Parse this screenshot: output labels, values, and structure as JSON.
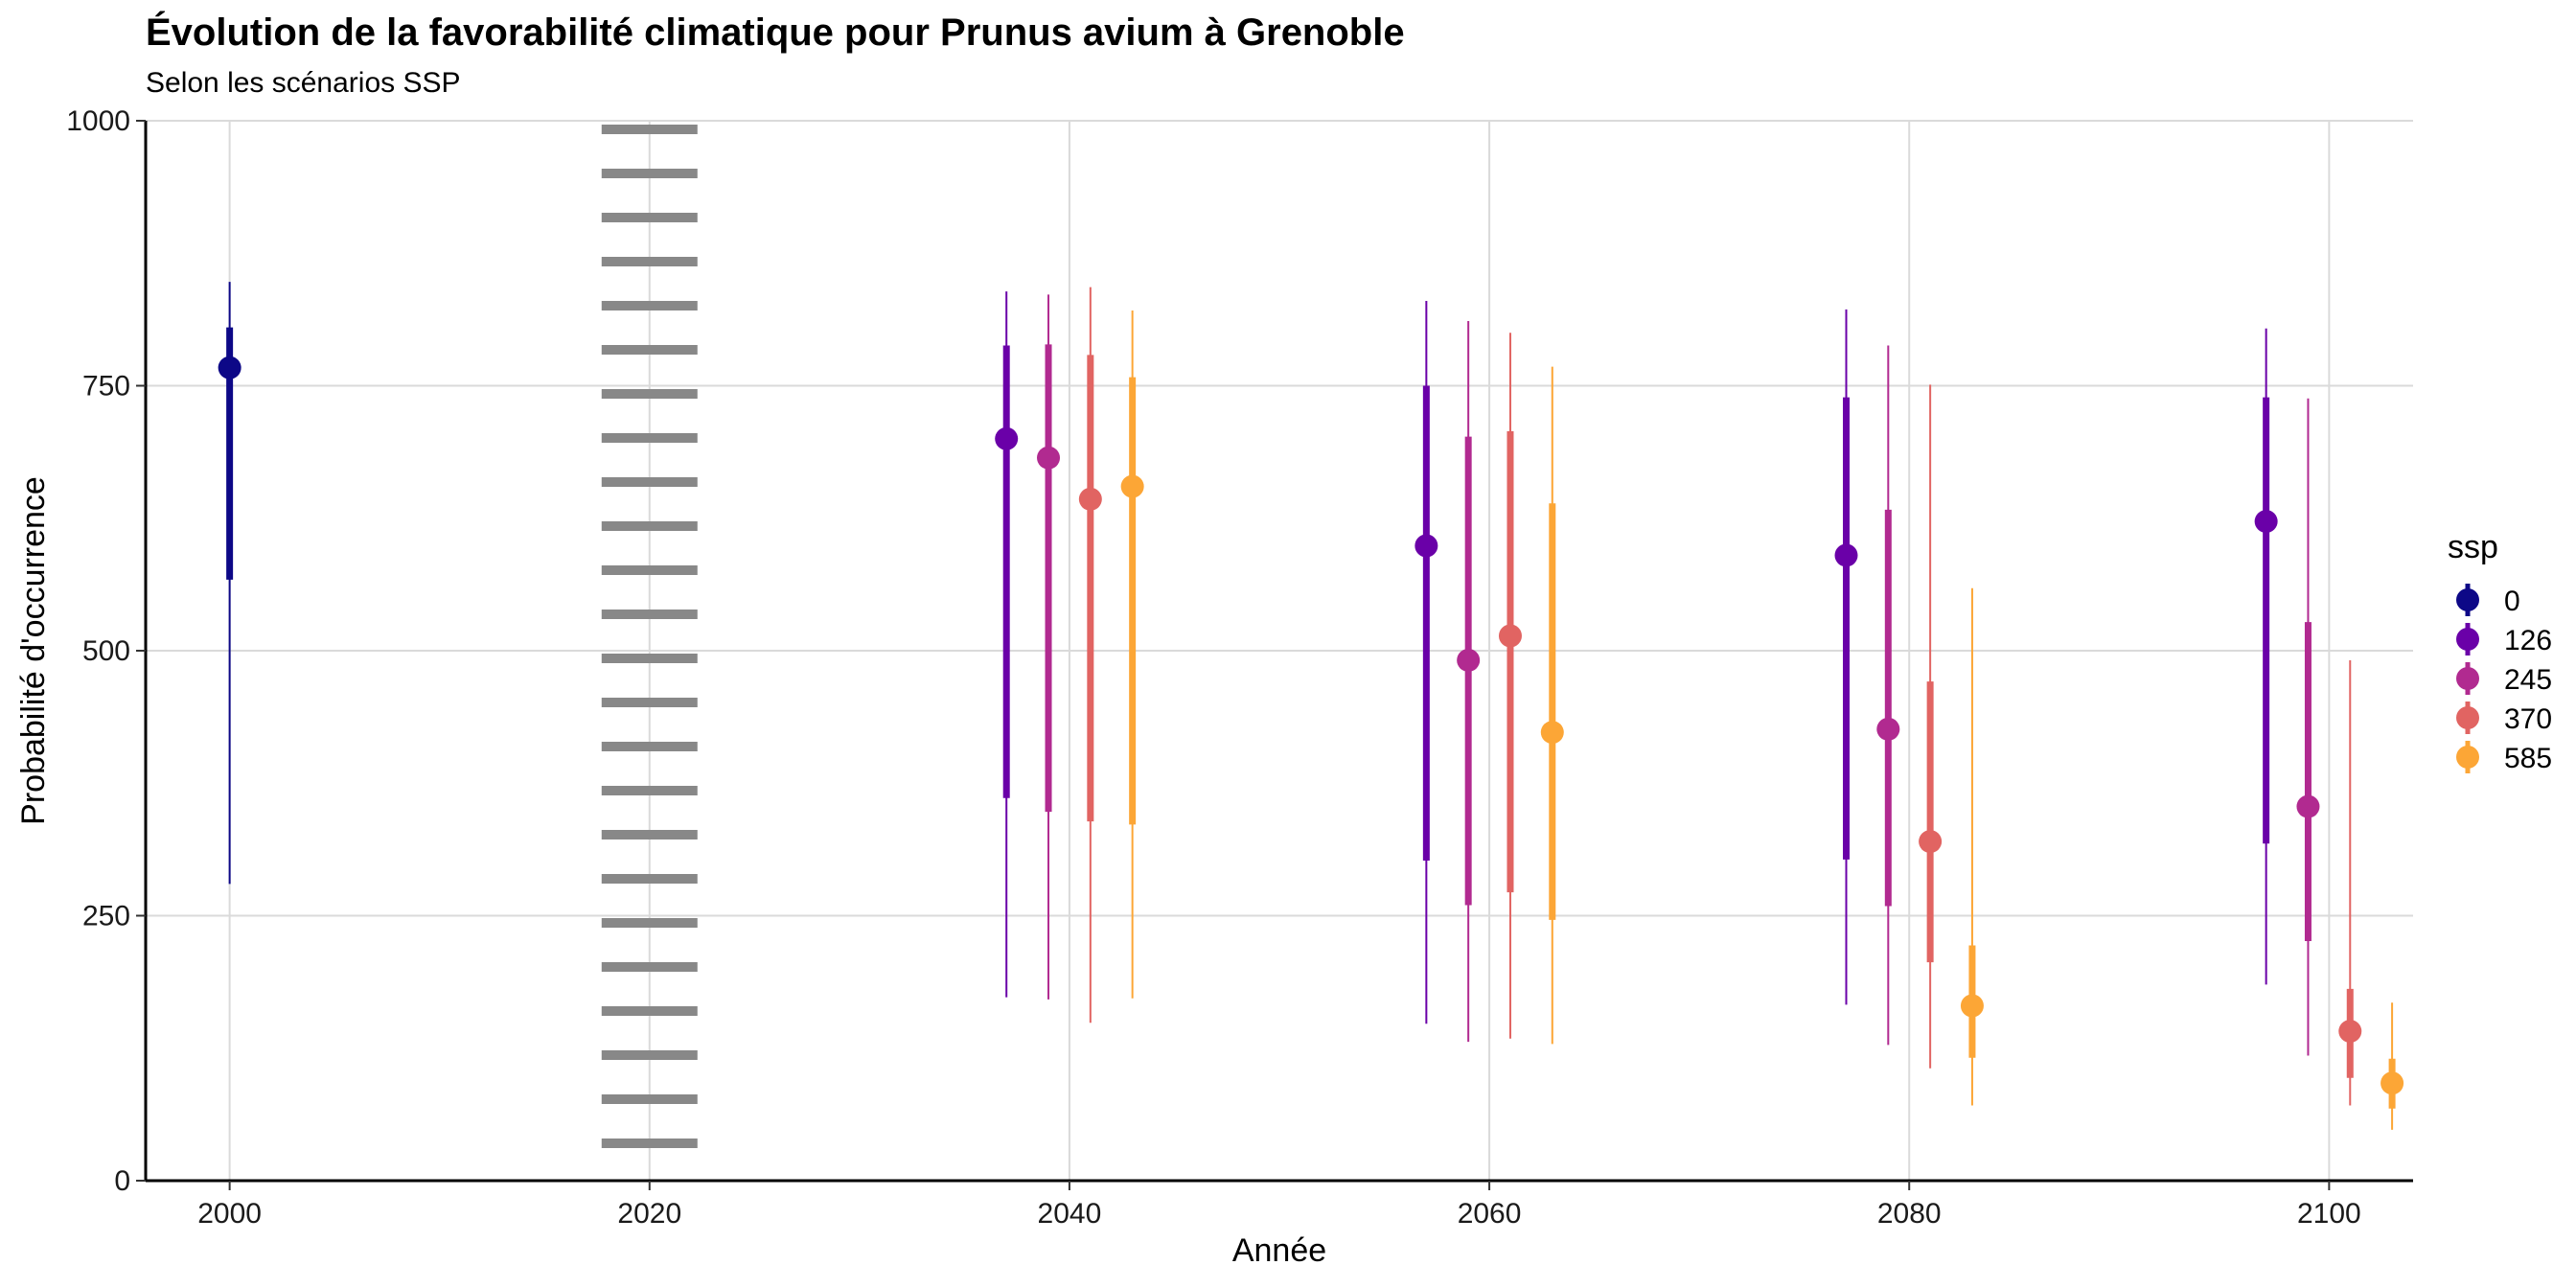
{
  "chart_data": {
    "type": "pointrange",
    "title": "Évolution de la favorabilité climatique pour Prunus avium à Grenoble",
    "subtitle": "Selon les scénarios SSP",
    "xlabel": "Année",
    "ylabel": "Probabilité d'occurrence",
    "xlim": [
      1996,
      2104
    ],
    "ylim": [
      0,
      1000
    ],
    "x_ticks": [
      2000,
      2020,
      2040,
      2060,
      2080,
      2100
    ],
    "y_ticks": [
      0,
      250,
      500,
      750,
      1000
    ],
    "grid": "major x and y",
    "reference_line": {
      "x": 2020,
      "style": "dotted",
      "color": "#888888"
    },
    "legend": {
      "title": "ssp",
      "position": "right"
    },
    "series": [
      {
        "name": "0",
        "color": "#0d0887",
        "points": [
          {
            "x": 2000,
            "y": 767,
            "inner": [
              567,
              805
            ],
            "outer": [
              280,
              848
            ]
          }
        ]
      },
      {
        "name": "126",
        "color": "#6a00a8",
        "points": [
          {
            "x": 2037,
            "y": 700,
            "inner": [
              361,
              788
            ],
            "outer": [
              173,
              839
            ]
          },
          {
            "x": 2057,
            "y": 599,
            "inner": [
              302,
              750
            ],
            "outer": [
              148,
              830
            ]
          },
          {
            "x": 2077,
            "y": 590,
            "inner": [
              303,
              739
            ],
            "outer": [
              166,
              822
            ]
          },
          {
            "x": 2097,
            "y": 622,
            "inner": [
              318,
              739
            ],
            "outer": [
              185,
              804
            ]
          }
        ]
      },
      {
        "name": "245",
        "color": "#b12a90",
        "points": [
          {
            "x": 2039,
            "y": 682,
            "inner": [
              348,
              789
            ],
            "outer": [
              171,
              836
            ]
          },
          {
            "x": 2059,
            "y": 491,
            "inner": [
              260,
              702
            ],
            "outer": [
              131,
              811
            ]
          },
          {
            "x": 2079,
            "y": 426,
            "inner": [
              259,
              633
            ],
            "outer": [
              128,
              788
            ]
          },
          {
            "x": 2099,
            "y": 353,
            "inner": [
              226,
              527
            ],
            "outer": [
              118,
              738
            ]
          }
        ]
      },
      {
        "name": "370",
        "color": "#e16462",
        "points": [
          {
            "x": 2041,
            "y": 643,
            "inner": [
              339,
              779
            ],
            "outer": [
              149,
              843
            ]
          },
          {
            "x": 2061,
            "y": 514,
            "inner": [
              272,
              707
            ],
            "outer": [
              134,
              800
            ]
          },
          {
            "x": 2081,
            "y": 320,
            "inner": [
              206,
              471
            ],
            "outer": [
              106,
              751
            ]
          },
          {
            "x": 2101,
            "y": 141,
            "inner": [
              97,
              181
            ],
            "outer": [
              71,
              491
            ]
          }
        ]
      },
      {
        "name": "585",
        "color": "#fca636",
        "points": [
          {
            "x": 2043,
            "y": 655,
            "inner": [
              336,
              758
            ],
            "outer": [
              172,
              821
            ]
          },
          {
            "x": 2063,
            "y": 423,
            "inner": [
              246,
              639
            ],
            "outer": [
              129,
              768
            ]
          },
          {
            "x": 2083,
            "y": 165,
            "inner": [
              116,
              222
            ],
            "outer": [
              71,
              559
            ]
          },
          {
            "x": 2103,
            "y": 92,
            "inner": [
              68,
              115
            ],
            "outer": [
              48,
              168
            ]
          }
        ]
      }
    ]
  }
}
